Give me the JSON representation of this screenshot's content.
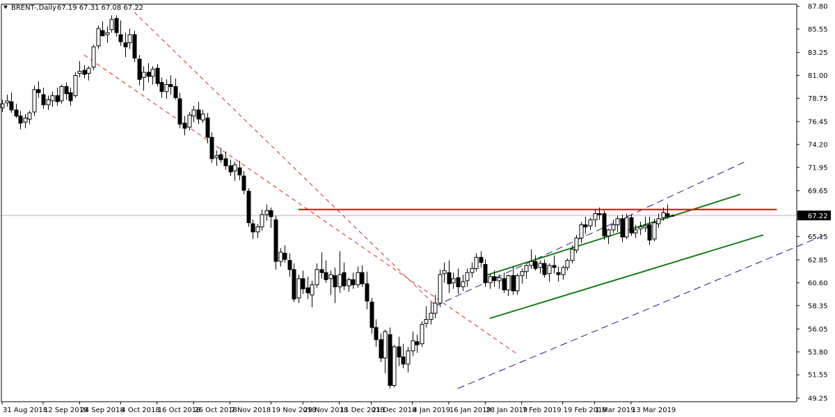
{
  "header": {
    "symbol": "BRENT-,Daily",
    "ohlc": "67.19 67.31 67.08 67.22"
  },
  "colors": {
    "background": "#ffffff",
    "axis": "#000000",
    "bear_candle": "#000000",
    "bull_candle": "#ffffff",
    "resistance": "#e00000",
    "down_channel": "#cc2b2b",
    "up_channel_outer": "#1a1a8c",
    "up_channel_inner": "#1a7a1a",
    "price_line": "#b4b4b4",
    "price_label_bg": "#000000"
  },
  "chart_data": {
    "type": "candlestick",
    "title": "BRENT-,Daily",
    "price_label": "67.22",
    "ylim": [
      48.9,
      88.0
    ],
    "grid": false,
    "y_ticks": [
      "87.80",
      "85.55",
      "83.25",
      "81.00",
      "78.75",
      "76.45",
      "74.20",
      "71.95",
      "69.65",
      "67.40",
      "65.15",
      "62.85",
      "60.60",
      "58.35",
      "56.05",
      "53.80",
      "51.55",
      "49.25"
    ],
    "x_labels": [
      "31 Aug 2018",
      "12 Sep 2018",
      "24 Sep 2018",
      "4 Oct 2018",
      "16 Oct 2018",
      "26 Oct 2018",
      "7 Nov 2018",
      "19 Nov 2018",
      "29 Nov 2018",
      "11 Dec 2018",
      "21 Dec 2018",
      "4 Jan 2019",
      "16 Jan 2019",
      "28 Jan 2019",
      "7 Feb 2019",
      "19 Feb 2019",
      "1 Mar 2019",
      "13 Mar 2019"
    ],
    "series": [
      {
        "fields": [
          "open",
          "high",
          "low",
          "close"
        ],
        "values": [
          [
            77.8,
            78.6,
            77.4,
            78.2
          ],
          [
            78.3,
            79.1,
            77.9,
            78.5
          ],
          [
            78.4,
            79.3,
            77.3,
            77.6
          ],
          [
            77.6,
            78.2,
            76.8,
            77.0
          ],
          [
            77.0,
            77.5,
            75.7,
            76.3
          ],
          [
            76.4,
            77.2,
            75.8,
            76.8
          ],
          [
            76.7,
            77.5,
            76.2,
            77.3
          ],
          [
            77.4,
            80.0,
            77.0,
            79.6
          ],
          [
            79.6,
            80.4,
            78.8,
            79.3
          ],
          [
            79.1,
            79.8,
            77.7,
            78.1
          ],
          [
            78.1,
            79.0,
            77.6,
            78.6
          ],
          [
            78.5,
            79.4,
            77.9,
            79.0
          ],
          [
            79.0,
            79.8,
            78.0,
            78.4
          ],
          [
            78.5,
            80.1,
            78.2,
            79.9
          ],
          [
            79.9,
            80.3,
            78.6,
            79.2
          ],
          [
            79.3,
            79.8,
            78.0,
            78.5
          ],
          [
            79.0,
            81.3,
            78.8,
            81.0
          ],
          [
            81.2,
            82.4,
            80.8,
            81.4
          ],
          [
            81.5,
            82.0,
            80.7,
            81.1
          ],
          [
            81.2,
            81.9,
            80.5,
            81.7
          ],
          [
            81.8,
            84.0,
            81.5,
            83.8
          ],
          [
            83.9,
            85.9,
            83.6,
            85.6
          ],
          [
            85.4,
            86.3,
            84.8,
            84.9
          ],
          [
            85.0,
            85.8,
            84.2,
            85.2
          ],
          [
            85.5,
            86.9,
            85.2,
            86.5
          ],
          [
            86.6,
            86.9,
            84.8,
            85.2
          ],
          [
            85.0,
            86.4,
            83.9,
            84.3
          ],
          [
            84.2,
            85.2,
            82.8,
            83.8
          ],
          [
            84.2,
            85.6,
            83.6,
            85.0
          ],
          [
            85.0,
            85.4,
            82.3,
            82.7
          ],
          [
            82.6,
            83.0,
            80.0,
            80.6
          ],
          [
            80.8,
            81.9,
            79.5,
            81.3
          ],
          [
            81.3,
            82.2,
            80.3,
            80.9
          ],
          [
            80.9,
            81.9,
            80.1,
            81.6
          ],
          [
            81.7,
            82.1,
            79.9,
            80.2
          ],
          [
            80.3,
            80.8,
            78.8,
            79.4
          ],
          [
            79.4,
            80.6,
            78.7,
            80.1
          ],
          [
            80.1,
            81.0,
            79.1,
            79.9
          ],
          [
            79.9,
            80.7,
            78.6,
            78.8
          ],
          [
            78.7,
            79.3,
            75.8,
            76.2
          ],
          [
            76.3,
            77.0,
            75.1,
            75.8
          ],
          [
            75.9,
            77.4,
            75.6,
            77.1
          ],
          [
            77.0,
            78.0,
            76.4,
            77.6
          ],
          [
            77.6,
            78.4,
            76.2,
            76.7
          ],
          [
            76.6,
            77.6,
            76.3,
            77.2
          ],
          [
            76.8,
            77.3,
            74.3,
            74.9
          ],
          [
            74.9,
            75.4,
            72.4,
            72.8
          ],
          [
            72.9,
            73.6,
            72.1,
            73.1
          ],
          [
            73.2,
            73.9,
            72.4,
            72.7
          ],
          [
            72.8,
            73.5,
            71.7,
            72.1
          ],
          [
            72.1,
            72.7,
            71.1,
            71.5
          ],
          [
            71.6,
            72.5,
            70.6,
            72.2
          ],
          [
            71.9,
            72.6,
            70.7,
            71.2
          ],
          [
            71.1,
            71.6,
            69.3,
            69.7
          ],
          [
            69.6,
            69.9,
            66.1,
            66.5
          ],
          [
            66.4,
            66.8,
            64.9,
            65.6
          ],
          [
            65.6,
            66.4,
            65.0,
            66.1
          ],
          [
            66.1,
            67.8,
            65.7,
            67.3
          ],
          [
            67.3,
            68.3,
            66.7,
            67.7
          ],
          [
            67.7,
            68.0,
            66.0,
            67.1
          ],
          [
            66.8,
            67.2,
            61.9,
            62.7
          ],
          [
            62.7,
            64.0,
            62.2,
            63.6
          ],
          [
            63.5,
            64.3,
            62.6,
            62.9
          ],
          [
            62.8,
            63.5,
            61.2,
            61.9
          ],
          [
            61.9,
            62.5,
            58.7,
            59.0
          ],
          [
            59.1,
            61.4,
            58.6,
            61.0
          ],
          [
            61.0,
            61.8,
            59.5,
            60.0
          ],
          [
            60.1,
            61.2,
            59.0,
            59.6
          ],
          [
            59.4,
            60.8,
            58.2,
            60.4
          ],
          [
            60.4,
            62.5,
            60.1,
            61.9
          ],
          [
            61.9,
            63.6,
            61.0,
            61.6
          ],
          [
            61.6,
            62.8,
            60.6,
            60.9
          ],
          [
            61.0,
            61.8,
            59.4,
            61.4
          ],
          [
            61.3,
            62.1,
            58.6,
            60.2
          ],
          [
            60.2,
            63.7,
            59.6,
            61.4
          ],
          [
            61.6,
            62.6,
            59.9,
            60.3
          ],
          [
            60.3,
            61.1,
            59.7,
            60.9
          ],
          [
            60.9,
            61.6,
            60.0,
            60.4
          ],
          [
            60.4,
            62.2,
            60.1,
            61.6
          ],
          [
            61.6,
            62.3,
            60.2,
            60.5
          ],
          [
            60.5,
            61.7,
            58.0,
            58.8
          ],
          [
            58.7,
            59.1,
            55.6,
            56.2
          ],
          [
            56.2,
            57.0,
            54.3,
            55.0
          ],
          [
            55.0,
            55.6,
            52.8,
            53.2
          ],
          [
            53.2,
            56.0,
            51.7,
            55.8
          ],
          [
            55.5,
            56.2,
            50.2,
            50.5
          ],
          [
            50.5,
            54.5,
            50.3,
            54.3
          ],
          [
            54.3,
            55.3,
            52.4,
            53.3
          ],
          [
            53.3,
            54.6,
            52.2,
            52.6
          ],
          [
            52.6,
            54.3,
            51.8,
            53.9
          ],
          [
            53.9,
            55.8,
            53.4,
            54.9
          ],
          [
            54.8,
            55.5,
            53.7,
            54.5
          ],
          [
            54.6,
            56.8,
            54.3,
            56.5
          ],
          [
            56.6,
            58.3,
            56.2,
            57.0
          ],
          [
            57.0,
            58.7,
            56.5,
            57.6
          ],
          [
            57.6,
            59.4,
            57.1,
            58.6
          ],
          [
            58.6,
            61.9,
            58.2,
            61.4
          ],
          [
            61.5,
            62.6,
            60.6,
            61.8
          ],
          [
            61.6,
            62.8,
            59.6,
            60.5
          ],
          [
            60.6,
            61.6,
            60.0,
            61.0
          ],
          [
            61.1,
            62.0,
            59.5,
            60.2
          ],
          [
            60.2,
            61.4,
            59.8,
            60.7
          ],
          [
            60.8,
            62.0,
            60.2,
            61.6
          ],
          [
            61.6,
            62.6,
            61.1,
            62.0
          ],
          [
            62.0,
            63.5,
            61.7,
            63.1
          ],
          [
            63.1,
            63.7,
            62.1,
            62.6
          ],
          [
            62.4,
            62.9,
            60.2,
            60.6
          ],
          [
            60.6,
            61.5,
            60.0,
            61.2
          ],
          [
            61.2,
            61.8,
            60.2,
            60.8
          ],
          [
            60.8,
            61.4,
            60.0,
            61.1
          ],
          [
            61.0,
            61.6,
            59.6,
            59.9
          ],
          [
            59.9,
            61.4,
            59.3,
            61.3
          ],
          [
            61.3,
            62.2,
            59.4,
            59.8
          ],
          [
            59.8,
            61.5,
            59.4,
            61.3
          ],
          [
            61.3,
            62.0,
            60.5,
            61.7
          ],
          [
            61.7,
            62.4,
            61.0,
            62.3
          ],
          [
            62.3,
            63.9,
            62.0,
            62.7
          ],
          [
            62.7,
            63.3,
            61.8,
            62.0
          ],
          [
            62.1,
            62.8,
            61.5,
            62.5
          ],
          [
            62.5,
            62.9,
            61.1,
            61.4
          ],
          [
            61.5,
            62.5,
            60.7,
            62.3
          ],
          [
            62.3,
            63.3,
            61.5,
            62.1
          ],
          [
            61.6,
            62.2,
            60.7,
            61.4
          ],
          [
            61.4,
            62.3,
            60.9,
            62.1
          ],
          [
            62.1,
            63.0,
            61.8,
            62.8
          ],
          [
            62.8,
            64.3,
            62.5,
            63.9
          ],
          [
            63.8,
            65.3,
            63.5,
            65.0
          ],
          [
            65.0,
            66.6,
            64.5,
            66.3
          ],
          [
            66.3,
            67.1,
            65.4,
            66.1
          ],
          [
            66.2,
            67.0,
            65.8,
            66.8
          ],
          [
            66.8,
            67.8,
            66.1,
            67.4
          ],
          [
            67.4,
            68.0,
            66.8,
            67.3
          ],
          [
            67.4,
            67.7,
            64.8,
            65.2
          ],
          [
            65.2,
            65.9,
            64.4,
            65.8
          ],
          [
            65.8,
            66.8,
            65.5,
            66.3
          ],
          [
            66.3,
            67.2,
            65.6,
            66.9
          ],
          [
            66.9,
            67.3,
            64.6,
            65.1
          ],
          [
            65.1,
            67.4,
            64.9,
            67.0
          ],
          [
            67.0,
            67.3,
            65.2,
            65.5
          ],
          [
            65.5,
            66.3,
            65.0,
            65.8
          ],
          [
            65.9,
            66.6,
            65.3,
            66.1
          ],
          [
            66.0,
            67.1,
            65.6,
            66.2
          ],
          [
            66.3,
            67.1,
            64.3,
            64.8
          ],
          [
            64.9,
            66.9,
            64.7,
            66.5
          ],
          [
            66.4,
            67.4,
            66.0,
            66.9
          ],
          [
            67.0,
            68.0,
            66.7,
            67.5
          ],
          [
            67.4,
            68.3,
            66.9,
            67.1
          ],
          [
            67.19,
            67.31,
            67.08,
            67.22
          ]
        ]
      }
    ]
  }
}
